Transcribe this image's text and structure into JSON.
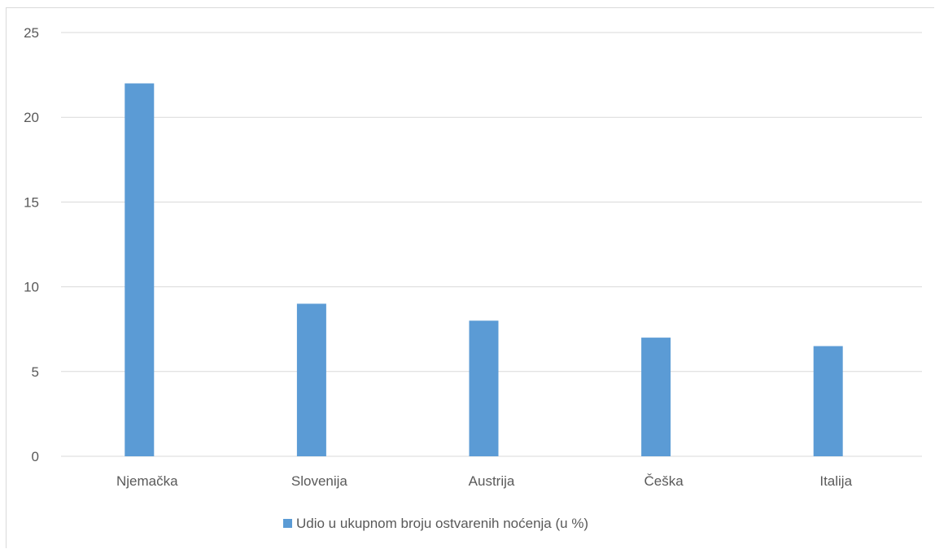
{
  "chart_data": {
    "type": "bar",
    "categories": [
      "Njemačka",
      "Slovenija",
      "Austrija",
      "Češka",
      "Italija"
    ],
    "series": [
      {
        "name": "Udio u ukupnom broju ostvarenih noćenja (u %)",
        "values": [
          22,
          9,
          8,
          7,
          6.5
        ],
        "color": "#5b9bd5"
      }
    ],
    "yticks": [
      "0",
      "5",
      "10",
      "15",
      "20",
      "25"
    ],
    "ylim": [
      0,
      25
    ],
    "grid": true,
    "legend_position": "bottom",
    "gridline_color": "#d9d9d9",
    "text_color": "#595959"
  }
}
